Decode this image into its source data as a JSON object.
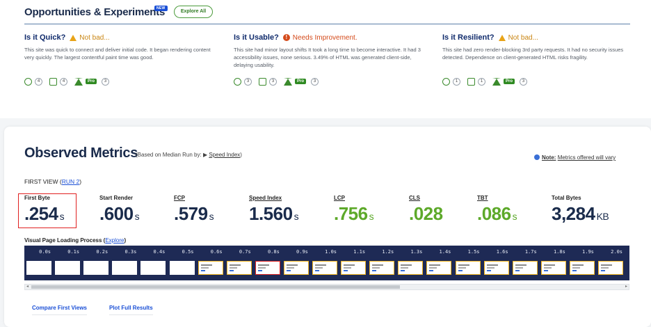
{
  "opportunities": {
    "title": "Opportunities & Experiments",
    "new_badge": "NEW",
    "explore_all": "Explore All",
    "columns": [
      {
        "heading": "Is it Quick?",
        "status": "Not bad...",
        "status_type": "warn",
        "text": "This site was quick to connect and deliver initial code. It began rendering content very quickly. The largest contentful paint time was good.",
        "counts": [
          "4",
          "4",
          "3"
        ],
        "pro": "Pro"
      },
      {
        "heading": "Is it Usable?",
        "status": "Needs Improvement.",
        "status_type": "bad",
        "text": "This site had minor layout shifts It took a long time to become interactive. It had 3 accessibility issues, none serious. 3.49% of HTML was generated client-side, delaying usability.",
        "counts": [
          "3",
          "3",
          "3"
        ],
        "pro": "Pro"
      },
      {
        "heading": "Is it Resilient?",
        "status": "Not bad...",
        "status_type": "warn",
        "text": "This site had zero render-blocking 3rd party requests. It had no security issues detected. Dependence on client-generated HTML risks fragility.",
        "counts": [
          "1",
          "1",
          "3"
        ],
        "pro": "Pro"
      }
    ]
  },
  "observed": {
    "title": "Observed Metrics",
    "subtitle_prefix": "(Based on Median Run by: ▶",
    "subtitle_link": "Speed Index",
    "subtitle_suffix": ")",
    "note_label": "Note:",
    "note_text": "Metrics offered will vary",
    "first_view": "FIRST VIEW (",
    "run_link": "RUN 2",
    "first_view_close": ")",
    "metrics": [
      {
        "label": "First Byte",
        "value": ".254",
        "unit": "s",
        "color": "#1a2b4b"
      },
      {
        "label": "Start Render",
        "value": ".600",
        "unit": "s",
        "color": "#1a2b4b"
      },
      {
        "label": "FCP",
        "value": ".579",
        "unit": "s",
        "color": "#1a2b4b"
      },
      {
        "label": "Speed Index",
        "value": "1.560",
        "unit": "s",
        "color": "#1a2b4b"
      },
      {
        "label": "LCP",
        "value": ".756",
        "unit": "s",
        "color": "#5da92a"
      },
      {
        "label": "CLS",
        "value": ".028",
        "unit": "",
        "color": "#5da92a"
      },
      {
        "label": "TBT",
        "value": ".086",
        "unit": "s",
        "color": "#5da92a"
      },
      {
        "label": "Total Bytes",
        "value": "3,284",
        "unit": "KB",
        "color": "#1a2b4b"
      }
    ],
    "vpl_label": "Visual Page Loading Process (",
    "vpl_link": "Explore",
    "vpl_close": ")",
    "frames": [
      "0.0s",
      "0.1s",
      "0.2s",
      "0.3s",
      "0.4s",
      "0.5s",
      "0.6s",
      "0.7s",
      "0.8s",
      "0.9s",
      "1.0s",
      "1.1s",
      "1.2s",
      "1.3s",
      "1.4s",
      "1.5s",
      "1.6s",
      "1.7s",
      "1.8s",
      "1.9s",
      "2.0s"
    ],
    "compare_link": "Compare First Views",
    "plot_link": "Plot Full Results"
  }
}
